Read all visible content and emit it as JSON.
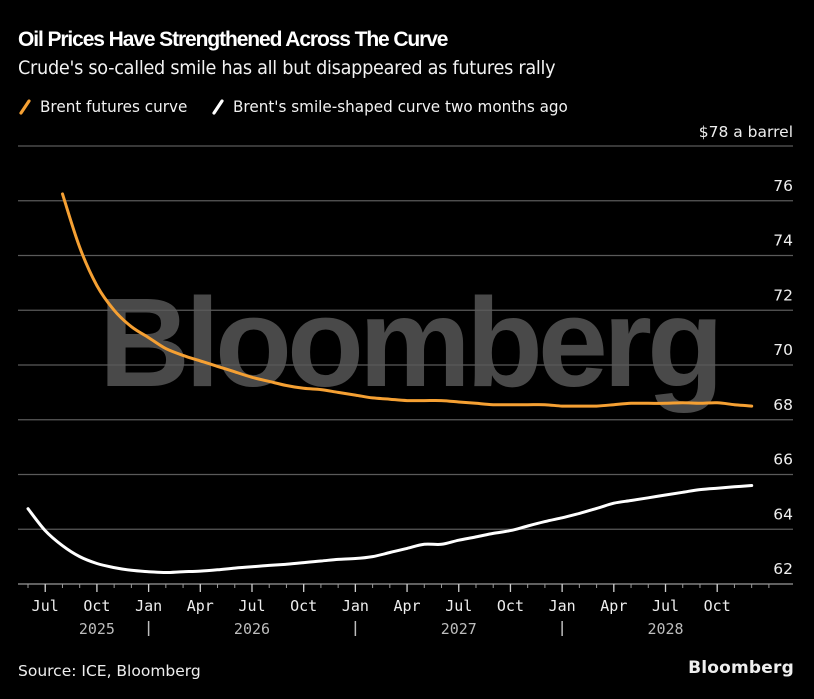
{
  "header": {
    "title": "Oil Prices Have Strengthened Across The Curve",
    "subtitle": "Crude's so-called smile has all but disappeared as futures rally"
  },
  "legend": [
    {
      "label": "Brent futures curve",
      "color": "#f5a033"
    },
    {
      "label": "Brent's smile-shaped curve two months ago",
      "color": "#ffffff"
    }
  ],
  "footer": {
    "source": "Source: ICE, Bloomberg",
    "logo": "Bloomberg"
  },
  "watermark": "Bloomberg",
  "chart_data": {
    "type": "line",
    "title": "Oil Prices Have Strengthened Across The Curve",
    "subtitle": "Crude's so-called smile has all but disappeared as futures rally",
    "xlabel": "",
    "ylabel": "$ a barrel",
    "unit_label": "$78 a barrel",
    "ylim": [
      62,
      78
    ],
    "y_ticks": [
      78,
      76,
      74,
      72,
      70,
      68,
      66,
      64,
      62
    ],
    "y_tick_labels": [
      "$78 a barrel",
      "76",
      "74",
      "72",
      "70",
      "68",
      "66",
      "64",
      "62"
    ],
    "y_axis_side": "right",
    "grid": true,
    "legend_position": "top-left",
    "x_start": "Jun 2025",
    "x_range_months": [
      0,
      43
    ],
    "x_month_ticks": [
      {
        "label": "Jul",
        "month_index": 1
      },
      {
        "label": "Oct",
        "month_index": 4
      },
      {
        "label": "Jan",
        "month_index": 7
      },
      {
        "label": "Apr",
        "month_index": 10
      },
      {
        "label": "Jul",
        "month_index": 13
      },
      {
        "label": "Oct",
        "month_index": 16
      },
      {
        "label": "Jan",
        "month_index": 19
      },
      {
        "label": "Apr",
        "month_index": 22
      },
      {
        "label": "Jul",
        "month_index": 25
      },
      {
        "label": "Oct",
        "month_index": 28
      },
      {
        "label": "Jan",
        "month_index": 31
      },
      {
        "label": "Apr",
        "month_index": 34
      },
      {
        "label": "Jul",
        "month_index": 37
      },
      {
        "label": "Oct",
        "month_index": 40
      }
    ],
    "x_year_labels": [
      {
        "label": "2025",
        "month_index": 4
      },
      {
        "label": "2026",
        "month_index": 13
      },
      {
        "label": "2027",
        "month_index": 25
      },
      {
        "label": "2028",
        "month_index": 37
      }
    ],
    "x_year_separators": [
      7,
      19,
      31
    ],
    "x_minor_tick_count": 45,
    "series": [
      {
        "name": "Brent futures curve",
        "color": "#f5a033",
        "start_month_index": 2,
        "values": [
          76.25,
          74.3,
          72.9,
          72.0,
          71.4,
          71.0,
          70.6,
          70.35,
          70.15,
          69.95,
          69.75,
          69.55,
          69.4,
          69.25,
          69.15,
          69.1,
          69.0,
          68.9,
          68.8,
          68.75,
          68.7,
          68.7,
          68.7,
          68.65,
          68.6,
          68.55,
          68.55,
          68.55,
          68.55,
          68.5,
          68.5,
          68.5,
          68.55,
          68.6,
          68.6,
          68.6,
          68.62,
          68.6,
          68.62,
          68.55,
          68.5
        ]
      },
      {
        "name": "Brent's smile-shaped curve two months ago",
        "color": "#ffffff",
        "start_month_index": 0,
        "values": [
          64.75,
          63.95,
          63.4,
          63.0,
          62.75,
          62.6,
          62.5,
          62.45,
          62.42,
          62.45,
          62.47,
          62.52,
          62.58,
          62.63,
          62.68,
          62.72,
          62.78,
          62.84,
          62.9,
          62.93,
          63.0,
          63.15,
          63.3,
          63.45,
          63.45,
          63.6,
          63.72,
          63.85,
          63.95,
          64.12,
          64.28,
          64.42,
          64.58,
          64.76,
          64.95,
          65.05,
          65.15,
          65.25,
          65.35,
          65.45,
          65.5,
          65.55,
          65.6
        ]
      }
    ]
  }
}
